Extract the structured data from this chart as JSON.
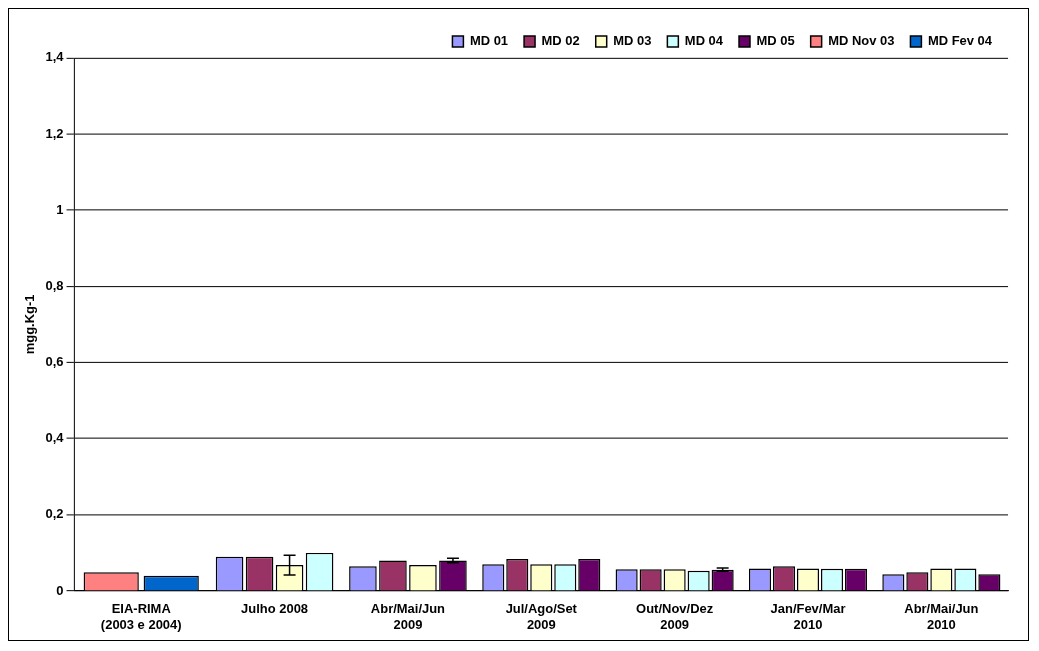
{
  "chart_data": {
    "type": "bar",
    "ylabel": "mgg.Kg-1",
    "categories": [
      "EIA-RIMA\n(2003 e 2004)",
      "Julho 2008",
      "Abr/Mai/Jun\n2009",
      "Jul/Ago/Set\n2009",
      "Out/Nov/Dez\n2009",
      "Jan/Fev/Mar\n2010",
      "Abr/Mai/Jun\n2010"
    ],
    "series": [
      {
        "name": "MD 01",
        "color": "#9999ff",
        "values": [
          null,
          0.09,
          0.065,
          0.07,
          0.057,
          0.059,
          0.044
        ]
      },
      {
        "name": "MD 02",
        "color": "#993366",
        "values": [
          null,
          0.09,
          0.08,
          0.084,
          0.057,
          0.065,
          0.049
        ]
      },
      {
        "name": "MD 03",
        "color": "#ffffcc",
        "values": [
          null,
          0.068,
          0.068,
          0.07,
          0.057,
          0.059,
          0.059
        ],
        "errors": [
          null,
          0.026,
          null,
          null,
          null,
          null,
          null
        ]
      },
      {
        "name": "MD 04",
        "color": "#ccffff",
        "values": [
          null,
          0.1,
          null,
          0.07,
          0.053,
          0.058,
          0.059
        ]
      },
      {
        "name": "MD 05",
        "color": "#660066",
        "values": [
          null,
          null,
          0.08,
          0.084,
          0.056,
          0.058,
          0.044
        ],
        "errors": [
          null,
          null,
          0.006,
          null,
          0.004,
          null,
          null
        ]
      },
      {
        "name": "MD Nov 03",
        "color": "#ff8080",
        "values": [
          0.049,
          null,
          null,
          null,
          null,
          null,
          null
        ]
      },
      {
        "name": "MD Fev 04",
        "color": "#0066cc",
        "values": [
          0.04,
          null,
          null,
          null,
          null,
          null,
          null
        ]
      }
    ],
    "ylim": [
      0,
      1.4
    ],
    "yticks": [
      0,
      {
        "value": 0.2,
        "label": "0,2"
      },
      {
        "value": 0.4,
        "label": "0,4"
      },
      {
        "value": 0.6,
        "label": "0,6"
      },
      {
        "value": 0.8,
        "label": "0,8"
      },
      1,
      {
        "value": 1.2,
        "label": "1,2"
      },
      {
        "value": 1.4,
        "label": "1,4"
      }
    ],
    "grid": "y",
    "legend": "top"
  }
}
